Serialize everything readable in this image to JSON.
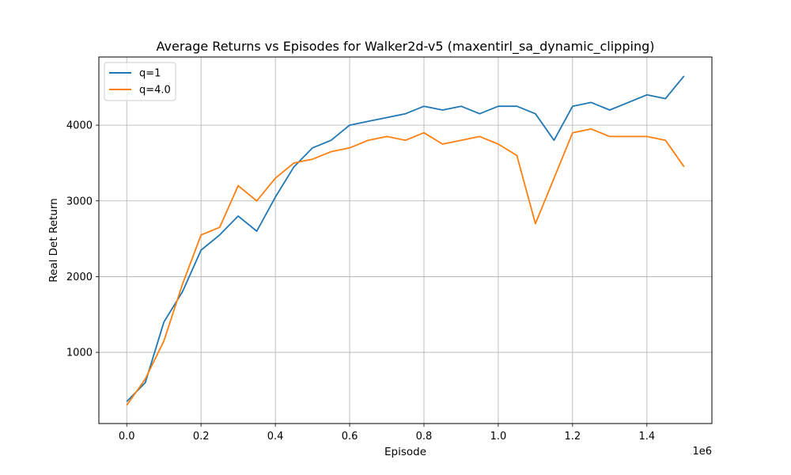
{
  "chart_data": {
    "type": "line",
    "title": "Average Returns vs Episodes for Walker2d-v5 (maxentirl_sa_dynamic_clipping)",
    "xlabel": "Episode",
    "ylabel": "Real Det Return",
    "x_offset_label": "1e6",
    "xlim": [
      -75000,
      1575000
    ],
    "ylim": [
      60,
      4900
    ],
    "x_ticks": [
      0,
      200000,
      400000,
      600000,
      800000,
      1000000,
      1200000,
      1400000
    ],
    "x_tick_labels": [
      "0.0",
      "0.2",
      "0.4",
      "0.6",
      "0.8",
      "1.0",
      "1.2",
      "1.4"
    ],
    "y_ticks": [
      1000,
      2000,
      3000,
      4000
    ],
    "y_tick_labels": [
      "1000",
      "2000",
      "3000",
      "4000"
    ],
    "grid": true,
    "legend_position": "top-left",
    "x": [
      0,
      50000,
      100000,
      150000,
      200000,
      250000,
      300000,
      350000,
      400000,
      450000,
      500000,
      550000,
      600000,
      650000,
      700000,
      750000,
      800000,
      850000,
      900000,
      950000,
      1000000,
      1050000,
      1100000,
      1150000,
      1200000,
      1250000,
      1300000,
      1350000,
      1400000,
      1450000,
      1500000
    ],
    "series": [
      {
        "name": "q=1",
        "color": "#1f77b4",
        "values": [
          350,
          600,
          1400,
          1800,
          2350,
          2550,
          2800,
          2600,
          3050,
          3450,
          3700,
          3800,
          4000,
          4050,
          4100,
          4150,
          4250,
          4200,
          4250,
          4150,
          4250,
          4250,
          4150,
          3800,
          4250,
          4300,
          4200,
          4300,
          4400,
          4350,
          4650
        ]
      },
      {
        "name": "q=4.0",
        "color": "#ff7f0e",
        "values": [
          300,
          650,
          1150,
          1900,
          2550,
          2650,
          3200,
          3000,
          3300,
          3500,
          3550,
          3650,
          3700,
          3800,
          3850,
          3800,
          3900,
          3750,
          3800,
          3850,
          3750,
          3600,
          2700,
          3300,
          3900,
          3950,
          3850,
          3850,
          3850,
          3800,
          3450
        ]
      }
    ]
  }
}
